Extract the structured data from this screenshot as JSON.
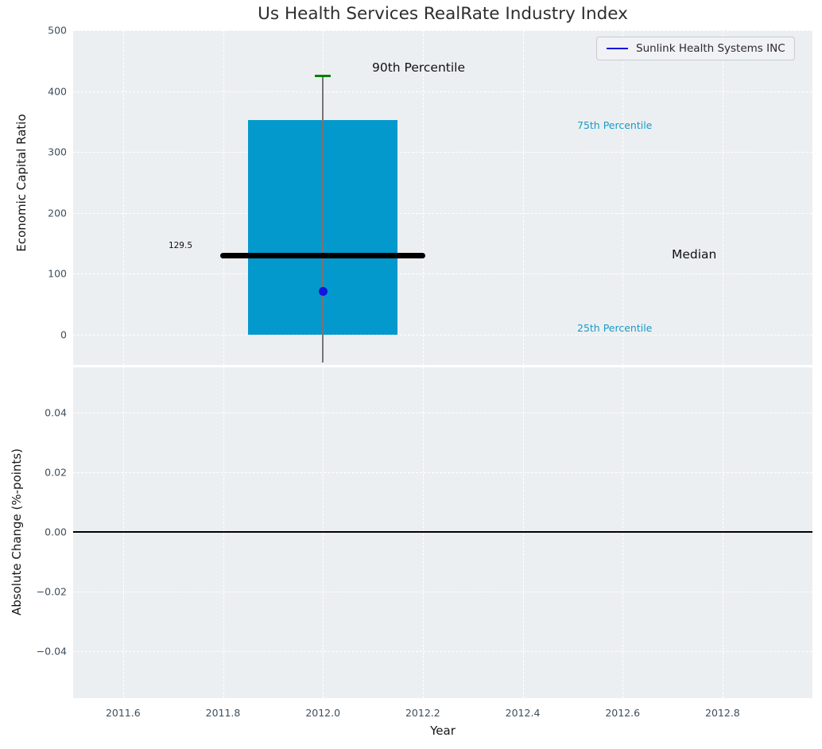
{
  "colors": {
    "figure_background": "#ffffff",
    "axes_background": "#eceff1",
    "grid": "#ffffff",
    "box_fill": "#0499cc",
    "median_line": "#000000",
    "whisker": "#757575",
    "p90_cap": "#008000",
    "company_blue": "#1414e0",
    "percentile_text": "#189ac8",
    "tick_text": "#3e4e5c",
    "zero_line": "#000000"
  },
  "chart_data": [
    {
      "type": "box",
      "title": "Us Health Services RealRate Industry Index",
      "ylabel": "Economic Capital Ratio",
      "xlim": [
        2011.5,
        2012.98
      ],
      "ylim": [
        -50.3,
        500
      ],
      "grid": "white dashed, on",
      "legend_position": "upper right",
      "legend_entries": [
        {
          "label": "Sunlink Health Systems INC",
          "color": "#1414e0"
        }
      ],
      "yticks": [
        {
          "v": 0,
          "label": "0"
        },
        {
          "v": 100,
          "label": "100"
        },
        {
          "v": 200,
          "label": "200"
        },
        {
          "v": 300,
          "label": "300"
        },
        {
          "v": 400,
          "label": "400"
        },
        {
          "v": 500,
          "label": "500"
        }
      ],
      "box": {
        "x": 2012.0,
        "width": 0.3,
        "p25": 0,
        "median": 129.5,
        "p75": 352,
        "p90": 425,
        "whisker_low": -47,
        "median_line_halfspan": 0.205,
        "cap_halfspan": 0.016
      },
      "company_point": {
        "name": "Sunlink Health Systems INC",
        "x": 2012.0,
        "y": 70
      },
      "annotations": {
        "p90_label": "90th Percentile",
        "p75_label": "75th Percentile",
        "median_label": "Median",
        "p25_label": "25th Percentile",
        "median_value": "129.5"
      }
    },
    {
      "type": "line",
      "ylabel": "Absolute Change (%-points)",
      "xlabel": "Year",
      "xlim": [
        2011.5,
        2012.98
      ],
      "ylim": [
        -0.0558,
        0.0552
      ],
      "zero_line_y": 0.0,
      "series": [],
      "yticks": [
        {
          "v": 0.04,
          "label": "0.04"
        },
        {
          "v": 0.02,
          "label": "0.02"
        },
        {
          "v": 0.0,
          "label": "0.00"
        },
        {
          "v": -0.02,
          "label": "−0.02"
        },
        {
          "v": -0.04,
          "label": "−0.04"
        }
      ],
      "xticks": [
        {
          "v": 2011.6,
          "label": "2011.6"
        },
        {
          "v": 2011.8,
          "label": "2011.8"
        },
        {
          "v": 2012.0,
          "label": "2012.0"
        },
        {
          "v": 2012.2,
          "label": "2012.2"
        },
        {
          "v": 2012.4,
          "label": "2012.4"
        },
        {
          "v": 2012.6,
          "label": "2012.6"
        },
        {
          "v": 2012.8,
          "label": "2012.8"
        }
      ]
    }
  ]
}
